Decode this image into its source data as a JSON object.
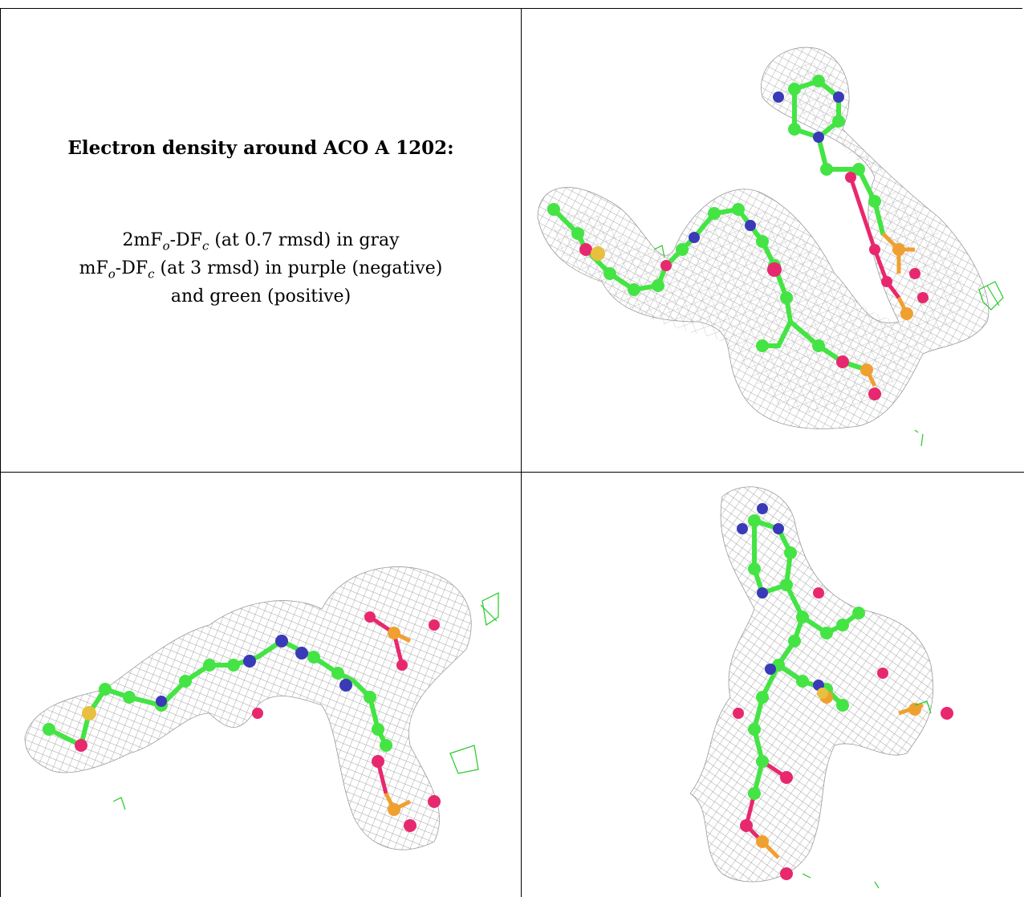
{
  "caption": {
    "title": "Electron density around ACO A 1202:",
    "line1_pre": "2mF",
    "line1_sub1": "o",
    "line1_mid": "-DF",
    "line1_sub2": "c",
    "line1_post": " (at 0.7 rmsd) in gray",
    "line2_pre": "mF",
    "line2_sub1": "o",
    "line2_mid": "-DF",
    "line2_sub2": "c",
    "line2_post": " (at 3 rmsd) in purple (negative)",
    "line3": "and green (positive)"
  },
  "colors": {
    "mesh": "#a8a8a8",
    "carbon": "#44e444",
    "nitrogen": "#3a3ab8",
    "oxygen": "#e8286e",
    "phosphorus": "#f0a030",
    "sulfur": "#e8c040",
    "positive_density": "#22cc22"
  },
  "panels": [
    {
      "name": "view-top-right"
    },
    {
      "name": "view-bottom-left"
    },
    {
      "name": "view-bottom-right"
    }
  ]
}
